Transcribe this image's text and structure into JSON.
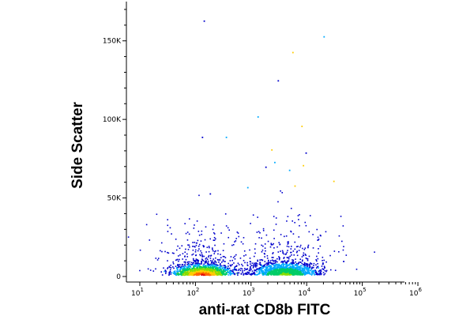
{
  "chart_data": {
    "type": "scatter",
    "xlabel": "anti-rat CD8b FITC",
    "ylabel": "Side Scatter",
    "x_scale": "log",
    "xlim": [
      10,
      1000000
    ],
    "ylim": [
      0,
      175000
    ],
    "x_ticks": [
      {
        "value": 10,
        "base": "10",
        "exp": "1"
      },
      {
        "value": 100,
        "base": "10",
        "exp": "2"
      },
      {
        "value": 1000,
        "base": "10",
        "exp": "3"
      },
      {
        "value": 10000,
        "base": "10",
        "exp": "4"
      },
      {
        "value": 100000,
        "base": "10",
        "exp": "5"
      },
      {
        "value": 1000000,
        "base": "10",
        "exp": "6"
      }
    ],
    "y_ticks": [
      {
        "value": 0,
        "label": "0"
      },
      {
        "value": 50000,
        "label": "50K"
      },
      {
        "value": 100000,
        "label": "100K"
      },
      {
        "value": 150000,
        "label": "150K"
      }
    ],
    "grid": false,
    "legend": "none",
    "colormap": "density (blue-cyan-green-yellow-red)",
    "density_colors": [
      "#0000cc",
      "#00aaff",
      "#00cc66",
      "#88dd00",
      "#ffcc00",
      "#ff6600",
      "#dd0000"
    ],
    "populations": [
      {
        "name_hint": "CD8b-negative",
        "x_center": 130,
        "x_spread_decades": 0.28,
        "y_center": 4000,
        "y_spread": 3500,
        "density_peak": "red"
      },
      {
        "name_hint": "CD8b-positive",
        "x_center": 4000,
        "x_spread_decades": 0.3,
        "y_center": 4500,
        "y_spread": 4000,
        "density_peak": "green"
      }
    ],
    "outlier_points": [
      {
        "x": 140,
        "y": 163000
      },
      {
        "x": 20000,
        "y": 153000
      },
      {
        "x": 5500,
        "y": 143000
      },
      {
        "x": 3000,
        "y": 125000
      },
      {
        "x": 1300,
        "y": 102000
      },
      {
        "x": 8000,
        "y": 96000
      },
      {
        "x": 130,
        "y": 89000
      },
      {
        "x": 350,
        "y": 89000
      },
      {
        "x": 2300,
        "y": 81000
      },
      {
        "x": 9500,
        "y": 79000
      },
      {
        "x": 2600,
        "y": 73000
      },
      {
        "x": 8500,
        "y": 71000
      },
      {
        "x": 1800,
        "y": 70000
      },
      {
        "x": 4800,
        "y": 68000
      },
      {
        "x": 30000,
        "y": 61000
      },
      {
        "x": 180,
        "y": 53000
      },
      {
        "x": 850,
        "y": 57000
      },
      {
        "x": 6000,
        "y": 58000
      },
      {
        "x": 45000,
        "y": 10000
      }
    ]
  }
}
